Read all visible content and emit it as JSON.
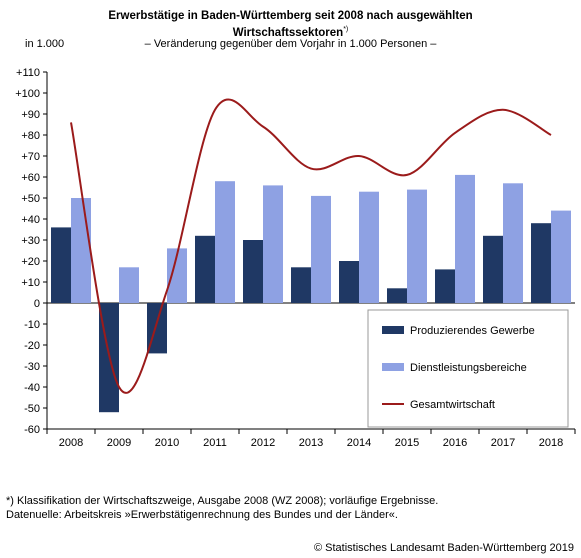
{
  "header": {
    "title_line1": "Erwerbstätige in Baden-Württemberg seit 2008 nach ausgewählten",
    "title_line2": "Wirtschaftssektoren",
    "title_mark": "*)",
    "subtitle": "– Veränderung gegenüber dem Vorjahr in 1.000 Personen –",
    "unit": "in 1.000"
  },
  "footer": {
    "footnote": "*) Klassifikation der Wirtschaftszweige, Ausgabe 2008 (WZ 2008); vorläufige Ergebnisse.",
    "source": "Datenuelle: Arbeitskreis »Erwerbstätigenrechnung des Bundes und der Länder«.",
    "copyright": "© Statistisches Landesamt Baden-Württemberg 2019"
  },
  "chart_data": {
    "type": "bar",
    "categories": [
      "2008",
      "2009",
      "2010",
      "2011",
      "2012",
      "2013",
      "2014",
      "2015",
      "2016",
      "2017",
      "2018"
    ],
    "ylim": [
      -60,
      110
    ],
    "yticks": [
      110,
      100,
      90,
      80,
      70,
      60,
      50,
      40,
      30,
      20,
      10,
      0,
      -10,
      -20,
      -30,
      -40,
      -50,
      -60
    ],
    "ytick_labels": [
      "+110",
      "+100",
      "+90",
      "+80",
      "+70",
      "+60",
      "+50",
      "+40",
      "+30",
      "+20",
      "+10",
      "0",
      "-10",
      "-20",
      "-30",
      "-40",
      "-50",
      "-60"
    ],
    "series": [
      {
        "name": "Produzierendes Gewerbe",
        "kind": "bar",
        "color": "#1f3864",
        "values": [
          36,
          -52,
          -24,
          32,
          30,
          17,
          20,
          7,
          16,
          32,
          38
        ]
      },
      {
        "name": "Dienstleistungsbereiche",
        "kind": "bar",
        "color": "#8ea1e3",
        "values": [
          50,
          17,
          26,
          58,
          56,
          51,
          53,
          54,
          61,
          57,
          44
        ]
      },
      {
        "name": "Gesamtwirtschaft",
        "kind": "line",
        "color": "#9b1b1b",
        "values": [
          86,
          -40,
          6,
          92,
          84,
          64,
          70,
          61,
          81,
          92,
          80
        ]
      }
    ],
    "legend_position": "bottom-right",
    "grid": false
  }
}
